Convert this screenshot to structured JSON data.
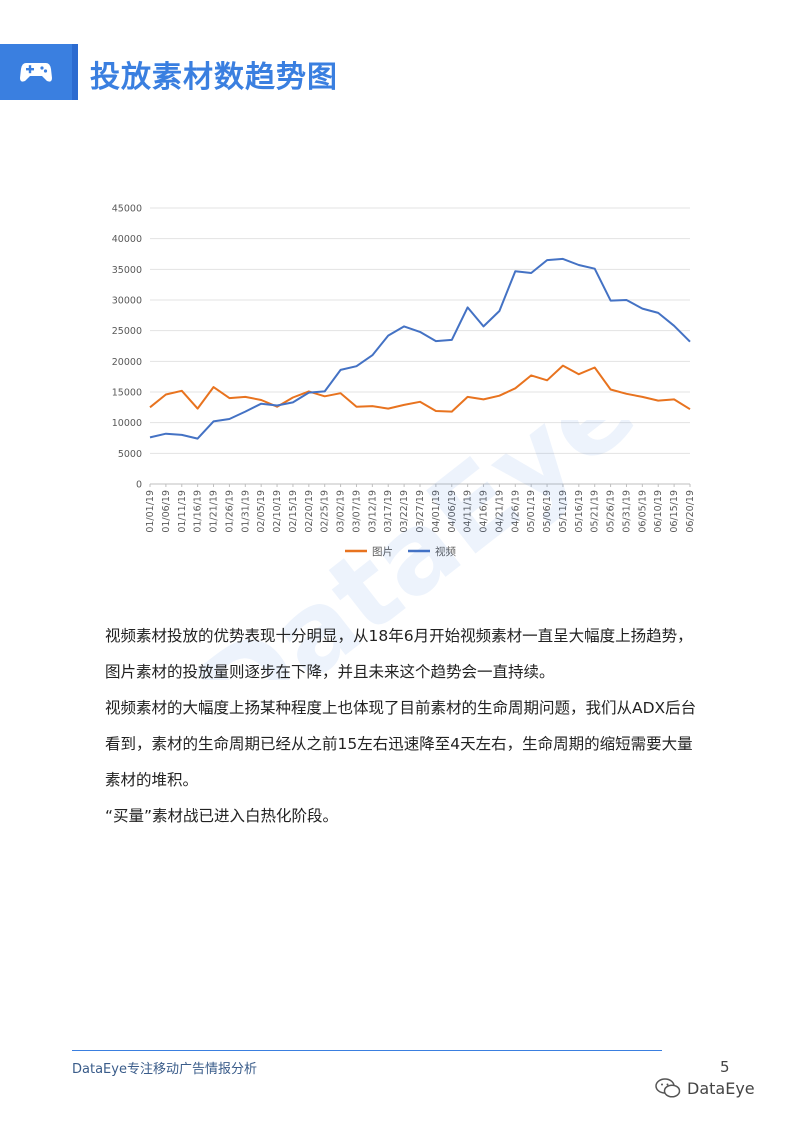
{
  "header": {
    "title": "投放素材数趋势图"
  },
  "watermark": {
    "text": "DataEye"
  },
  "chart_data": {
    "type": "line",
    "x": [
      "01/01/19",
      "01/06/19",
      "01/11/19",
      "01/16/19",
      "01/21/19",
      "01/26/19",
      "01/31/19",
      "02/05/19",
      "02/10/19",
      "02/15/19",
      "02/20/19",
      "02/25/19",
      "03/02/19",
      "03/07/19",
      "03/12/19",
      "03/17/19",
      "03/22/19",
      "03/27/19",
      "04/01/19",
      "04/06/19",
      "04/11/19",
      "04/16/19",
      "04/21/19",
      "04/26/19",
      "05/01/19",
      "05/06/19",
      "05/11/19",
      "05/16/19",
      "05/21/19",
      "05/26/19",
      "05/31/19",
      "06/05/19",
      "06/10/19",
      "06/15/19",
      "06/20/19"
    ],
    "series": [
      {
        "name": "图片",
        "color": "#e8731f",
        "values": [
          12500,
          14600,
          15200,
          12300,
          15800,
          14000,
          14200,
          13700,
          12600,
          14100,
          15100,
          14300,
          14800,
          12600,
          12700,
          12300,
          12900,
          13400,
          11900,
          11800,
          14200,
          13800,
          14400,
          15600,
          17700,
          16900,
          19300,
          17900,
          19000,
          15400,
          14700,
          14200,
          13600,
          13800,
          12200
        ]
      },
      {
        "name": "视频",
        "color": "#4472c4",
        "values": [
          7600,
          8200,
          8000,
          7400,
          10200,
          10600,
          11800,
          13100,
          12800,
          13300,
          14900,
          15100,
          18600,
          19200,
          21000,
          24200,
          25700,
          24800,
          23300,
          23500,
          28800,
          25700,
          28200,
          34700,
          34400,
          36500,
          36700,
          35700,
          35100,
          29900,
          30000,
          28600,
          27900,
          25800,
          23200
        ]
      }
    ],
    "ylim": [
      0,
      45000
    ],
    "yticks": [
      0,
      5000,
      10000,
      15000,
      20000,
      25000,
      30000,
      35000,
      40000,
      45000
    ],
    "legend": "bottom",
    "grid": true
  },
  "body": {
    "paragraphs": [
      "视频素材投放的优势表现十分明显，从18年6月开始视频素材一直呈大幅度上扬趋势，图片素材的投放量则逐步在下降，并且未来这个趋势会一直持续。",
      "视频素材的大幅度上扬某种程度上也体现了目前素材的生命周期问题，我们从ADX后台看到，素材的生命周期已经从之前15左右迅速降至4天左右，生命周期的缩短需要大量素材的堆积。",
      "“买量”素材战已进入白热化阶段。"
    ]
  },
  "footer": {
    "brand": "DataEye专注移动广告情报分析",
    "page_number": "5",
    "wechat_label": "DataEye"
  }
}
